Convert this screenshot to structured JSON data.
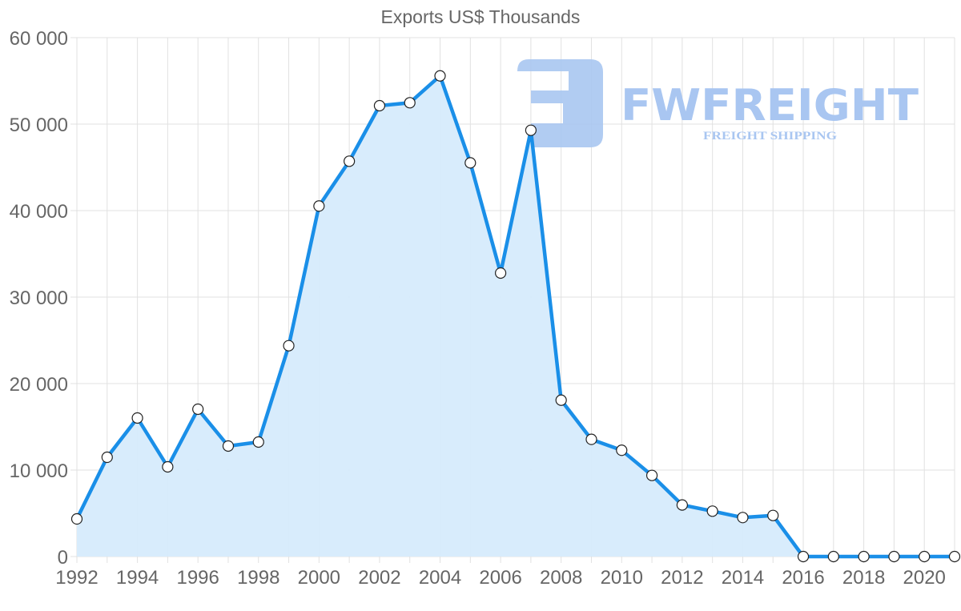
{
  "chart_data": {
    "type": "area",
    "title": "Exports US$ Thousands",
    "xlabel": "",
    "ylabel": "",
    "ylim": [
      0,
      60000
    ],
    "yticks": [
      0,
      10000,
      20000,
      30000,
      40000,
      50000,
      60000
    ],
    "ytick_labels": [
      "0",
      "10 000",
      "20 000",
      "30 000",
      "40 000",
      "50 000",
      "60 000"
    ],
    "xtick_labels": [
      "1992",
      "1994",
      "1996",
      "1998",
      "2000",
      "2002",
      "2004",
      "2006",
      "2008",
      "2010",
      "2012",
      "2014",
      "2016",
      "2018",
      "2020"
    ],
    "grid": true,
    "legend": null,
    "x": [
      1992,
      1993,
      1994,
      1995,
      1996,
      1997,
      1998,
      1999,
      2000,
      2001,
      2002,
      2003,
      2004,
      2005,
      2006,
      2007,
      2008,
      2009,
      2010,
      2011,
      2012,
      2013,
      2014,
      2015,
      2016,
      2017,
      2018,
      2019,
      2020,
      2021
    ],
    "series": [
      {
        "name": "Exports US$ Thousands",
        "color": "#1a8fe8",
        "fill": "#d6ebfc",
        "values": [
          4350,
          11480,
          16020,
          10370,
          17040,
          12780,
          13240,
          24380,
          40530,
          45710,
          52130,
          52470,
          55580,
          45520,
          32780,
          49290,
          18080,
          13550,
          12290,
          9380,
          5960,
          5250,
          4510,
          4750,
          0,
          0,
          0,
          0,
          0,
          0
        ]
      }
    ]
  },
  "watermark": {
    "brand": "FWFREIGHT",
    "tagline": "FREIGHT SHIPPING",
    "color": "#a9c6f1"
  }
}
